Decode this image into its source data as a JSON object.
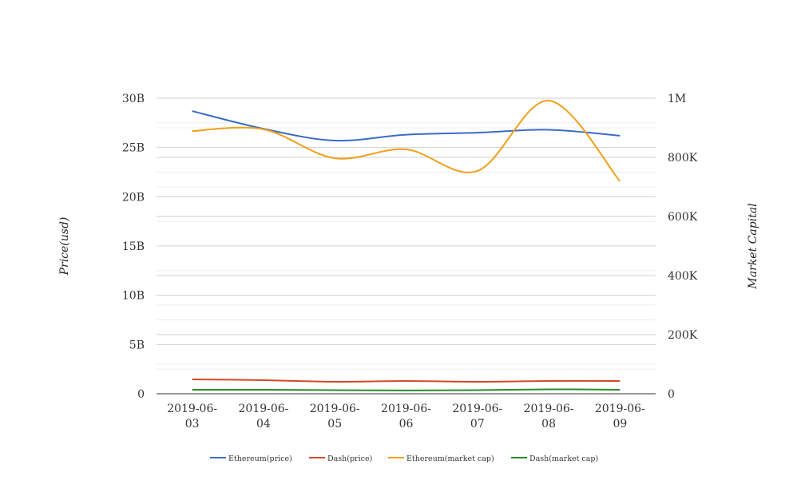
{
  "chart_data": {
    "type": "line",
    "title": "",
    "categories": [
      "2019-06-03",
      "2019-06-04",
      "2019-06-05",
      "2019-06-06",
      "2019-06-07",
      "2019-06-08",
      "2019-06-09"
    ],
    "category_labels": [
      [
        "2019-06-",
        "03"
      ],
      [
        "2019-06-",
        "04"
      ],
      [
        "2019-06-",
        "05"
      ],
      [
        "2019-06-",
        "06"
      ],
      [
        "2019-06-",
        "07"
      ],
      [
        "2019-06-",
        "08"
      ],
      [
        "2019-06-",
        "09"
      ]
    ],
    "ylabel_left": "Price(usd)",
    "ylabel_right": "Market Capital",
    "ylim_left": [
      0,
      30000000000
    ],
    "ylim_right": [
      0,
      1000000
    ],
    "left_ticks": [
      {
        "v": 0,
        "label": "0"
      },
      {
        "v": 5000000000,
        "label": "5B"
      },
      {
        "v": 10000000000,
        "label": "10B"
      },
      {
        "v": 15000000000,
        "label": "15B"
      },
      {
        "v": 20000000000,
        "label": "20B"
      },
      {
        "v": 25000000000,
        "label": "25B"
      },
      {
        "v": 30000000000,
        "label": "30B"
      }
    ],
    "right_ticks": [
      {
        "v": 0,
        "label": "0"
      },
      {
        "v": 200000,
        "label": "200K"
      },
      {
        "v": 400000,
        "label": "400K"
      },
      {
        "v": 600000,
        "label": "600K"
      },
      {
        "v": 800000,
        "label": "800K"
      },
      {
        "v": 1000000,
        "label": "1M"
      }
    ],
    "grid": true,
    "legend_position": "bottom",
    "series": [
      {
        "name": "Ethereum(price)",
        "axis": "left",
        "color": "#3b6cc4",
        "values": [
          28700000000,
          26900000000,
          25700000000,
          26300000000,
          26500000000,
          26800000000,
          26200000000
        ]
      },
      {
        "name": "Dash(price)",
        "axis": "left",
        "color": "#d4482a",
        "values": [
          1460000000,
          1380000000,
          1220000000,
          1300000000,
          1220000000,
          1300000000,
          1300000000
        ]
      },
      {
        "name": "Ethereum(market cap)",
        "axis": "right",
        "color": "#f0a01a",
        "values": [
          889000,
          895000,
          797000,
          827000,
          754000,
          992000,
          719000
        ]
      },
      {
        "name": "Dash(market cap)",
        "axis": "right",
        "color": "#2a8c2a",
        "values": [
          13500,
          13500,
          12000,
          11000,
          12000,
          15000,
          13500
        ]
      }
    ]
  }
}
